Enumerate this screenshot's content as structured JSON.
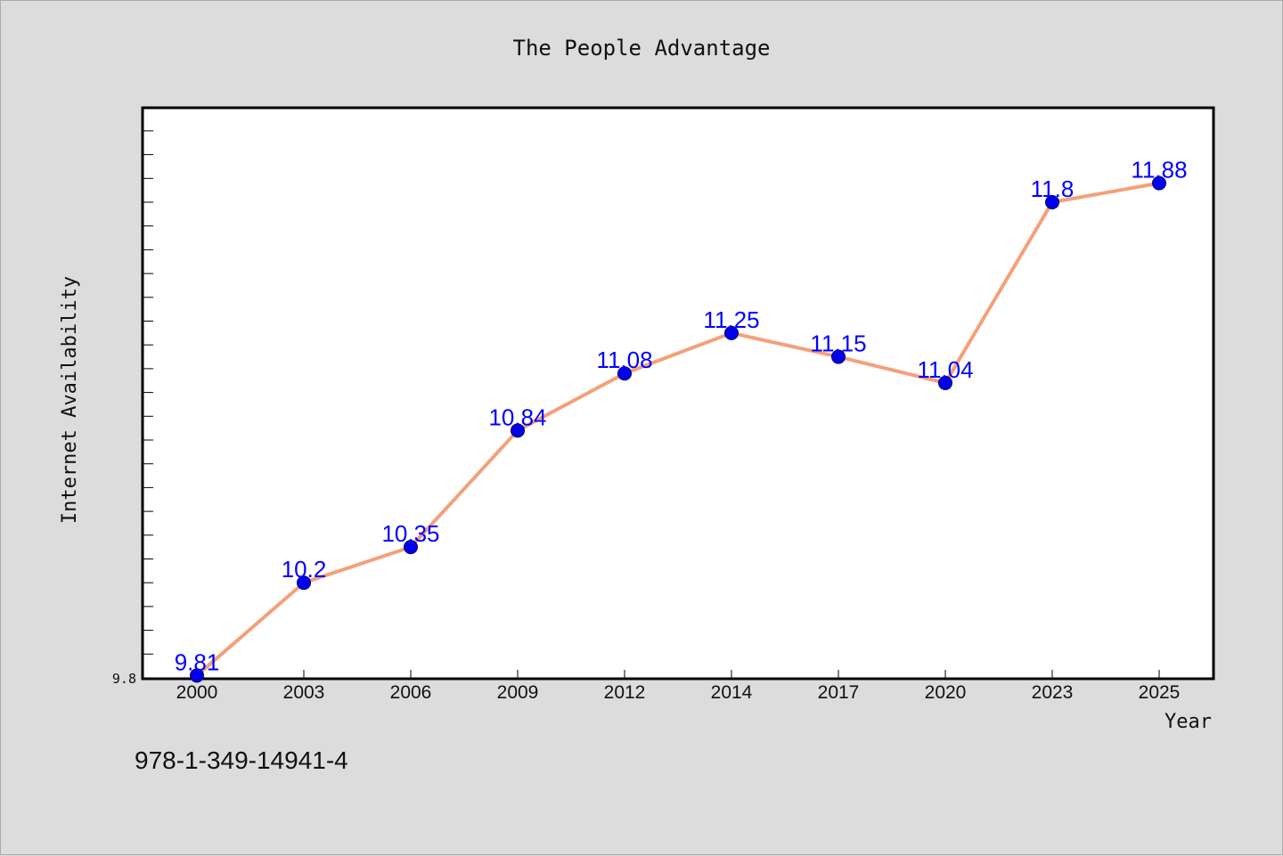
{
  "chart_data": {
    "type": "line",
    "title": "The People Advantage",
    "xlabel": "Year",
    "ylabel": "Internet Availability",
    "categories": [
      "2000",
      "2003",
      "2006",
      "2009",
      "2012",
      "2014",
      "2017",
      "2020",
      "2023",
      "2025"
    ],
    "series": [
      {
        "values": [
          9.81,
          10.2,
          10.35,
          10.84,
          11.08,
          11.25,
          11.15,
          11.04,
          11.8,
          11.88
        ],
        "line_color": "#f4a07a",
        "marker_color": "#0000ee"
      }
    ],
    "data_labels": [
      "9.81",
      "10.2",
      "10.35",
      "10.84",
      "11.08",
      "11.25",
      "11.15",
      "11.04",
      "11.8",
      "11.88"
    ],
    "y_tick_labels": [
      "9.8"
    ],
    "ylim": [
      9.8,
      12.2
    ],
    "grid": false,
    "legend": "none"
  },
  "footer": {
    "isbn": "978-1-349-14941-4"
  }
}
